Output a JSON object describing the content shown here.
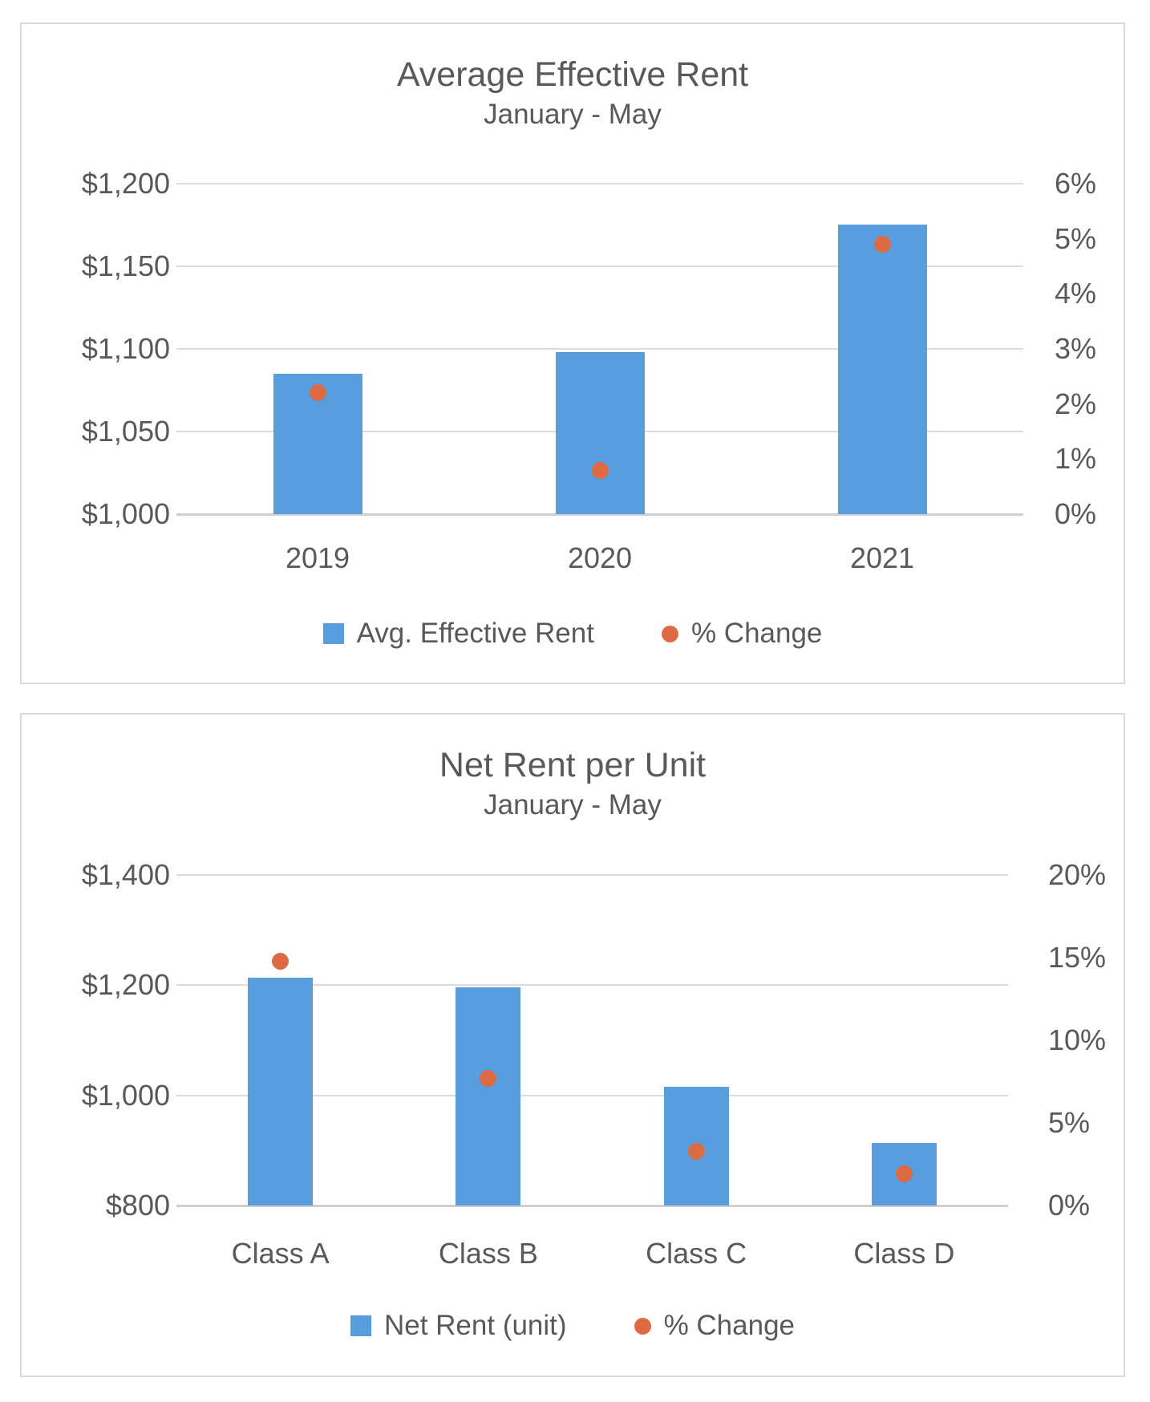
{
  "colors": {
    "bar_blue": "#589EDE",
    "dot_orange": "#DC6B44",
    "gridline": "#DCDCDC",
    "axis_line": "#CFCFCF",
    "text": "#595959",
    "card_border": "#DADADA"
  },
  "chart_data": [
    {
      "type": "bar",
      "secondary_type": "scatter",
      "title": "Average Effective Rent",
      "subtitle": "January - May",
      "categories": [
        "2019",
        "2020",
        "2021"
      ],
      "series": [
        {
          "name": "Avg. Effective Rent",
          "kind": "bar",
          "axis": "left",
          "color": "#589EDE",
          "values": [
            1085,
            1098,
            1175
          ]
        },
        {
          "name": "% Change",
          "kind": "scatter",
          "axis": "right",
          "color": "#DC6B44",
          "values": [
            2.2,
            0.8,
            4.9
          ]
        }
      ],
      "left_axis": {
        "min": 1000,
        "max": 1200,
        "step": 50,
        "tick_labels": [
          "$1,200",
          "$1,150",
          "$1,100",
          "$1,050",
          "$1,000"
        ]
      },
      "right_axis": {
        "min": 0,
        "max": 6,
        "step": 1,
        "tick_labels": [
          "6%",
          "5%",
          "4%",
          "3%",
          "2%",
          "1%",
          "0%"
        ]
      },
      "grid": true,
      "legend_position": "bottom",
      "legend": [
        {
          "label": "Avg. Effective Rent",
          "marker": "square",
          "color": "#589EDE"
        },
        {
          "label": "% Change",
          "marker": "circle",
          "color": "#DC6B44"
        }
      ]
    },
    {
      "type": "bar",
      "secondary_type": "scatter",
      "title": "Net Rent per Unit",
      "subtitle": "January - May",
      "categories": [
        "Class A",
        "Class B",
        "Class C",
        "Class D"
      ],
      "series": [
        {
          "name": "Net Rent (unit)",
          "kind": "bar",
          "axis": "left",
          "color": "#589EDE",
          "values": [
            1213,
            1196,
            1016,
            913
          ]
        },
        {
          "name": "% Change",
          "kind": "scatter",
          "axis": "right",
          "color": "#DC6B44",
          "values": [
            14.8,
            7.7,
            3.3,
            1.9
          ]
        }
      ],
      "left_axis": {
        "min": 800,
        "max": 1400,
        "step": 200,
        "tick_labels": [
          "$1,400",
          "$1,200",
          "$1,000",
          "$800"
        ]
      },
      "right_axis": {
        "min": 0,
        "max": 20,
        "step": 5,
        "tick_labels": [
          "20%",
          "15%",
          "10%",
          "5%",
          "0%"
        ]
      },
      "grid": true,
      "legend_position": "bottom",
      "legend": [
        {
          "label": "Net Rent (unit)",
          "marker": "square",
          "color": "#589EDE"
        },
        {
          "label": "% Change",
          "marker": "circle",
          "color": "#DC6B44"
        }
      ]
    }
  ]
}
